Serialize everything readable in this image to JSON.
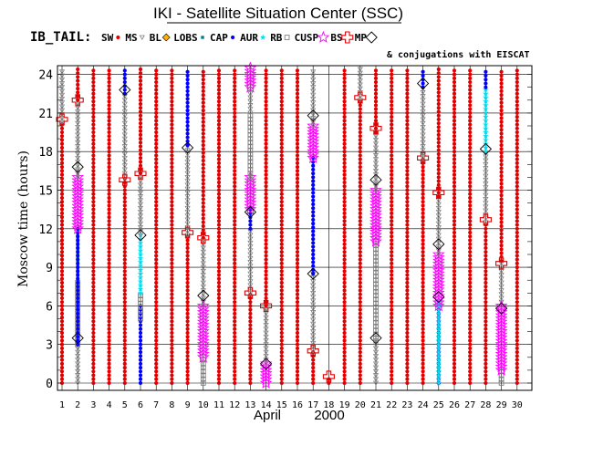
{
  "chart_data": {
    "type": "scatter",
    "title": "IKI - Satellite Situation Center (SSC)",
    "satellite": "IB_TAIL:",
    "legend_note": "& conjugations with EISCAT",
    "ylabel": "Moscow time (hours)",
    "xlabel_month": "April",
    "xlabel_year": "2000",
    "xlim": [
      1,
      30
    ],
    "ylim": [
      0,
      24
    ],
    "yticks": [
      0,
      3,
      6,
      9,
      12,
      15,
      18,
      21,
      24
    ],
    "xticks": [
      1,
      2,
      3,
      4,
      5,
      6,
      7,
      8,
      9,
      10,
      11,
      12,
      13,
      14,
      15,
      16,
      17,
      18,
      19,
      20,
      21,
      22,
      23,
      24,
      25,
      26,
      27,
      28,
      29,
      30
    ],
    "legend": [
      {
        "code": "SW",
        "label": "SW",
        "color": "#e00000",
        "shape": "dot"
      },
      {
        "code": "MS",
        "label": "MS",
        "color": "#7f7f7f",
        "shape": "tri-down"
      },
      {
        "code": "BL",
        "label": "BL",
        "color": "#ffb000",
        "shape": "diamond-fill"
      },
      {
        "code": "LOBS",
        "label": "LOBS",
        "color": "#008080",
        "shape": "square-small"
      },
      {
        "code": "CAP",
        "label": "CAP",
        "color": "#0000ff",
        "shape": "dot"
      },
      {
        "code": "AUR",
        "label": "AUR",
        "color": "#00ddee",
        "shape": "star"
      },
      {
        "code": "RB",
        "label": "RB",
        "color": "#7f7f7f",
        "shape": "square-open"
      },
      {
        "code": "CUSP",
        "label": "CUSP",
        "color": "#ff00ff",
        "shape": "star-open"
      },
      {
        "code": "BS",
        "label": "BS",
        "color": "#e00000",
        "shape": "cross-open"
      },
      {
        "code": "MP",
        "label": "MP",
        "color": "#000000",
        "shape": "diamond-open"
      }
    ],
    "days": [
      {
        "day": 1,
        "segments": [
          [
            "SW",
            0,
            20.3
          ],
          [
            "MS",
            20.3,
            24.5
          ]
        ],
        "bs": [
          20.5
        ],
        "mp": []
      },
      {
        "day": 2,
        "segments": [
          [
            "MS",
            0,
            3
          ],
          [
            "RB",
            3,
            8
          ],
          [
            "LOBS",
            8,
            12
          ],
          [
            "CAP",
            3,
            12
          ],
          [
            "CUSP",
            12,
            16
          ],
          [
            "MS",
            16,
            22
          ],
          [
            "SW",
            22,
            24.5
          ]
        ],
        "bs": [
          22
        ],
        "mp": [
          3.5,
          16.8
        ]
      },
      {
        "day": 3,
        "segments": [
          [
            "SW",
            0,
            24.5
          ]
        ],
        "bs": [],
        "mp": []
      },
      {
        "day": 4,
        "segments": [
          [
            "SW",
            0,
            24.5
          ]
        ],
        "bs": [],
        "mp": []
      },
      {
        "day": 5,
        "segments": [
          [
            "SW",
            0,
            16
          ],
          [
            "MS",
            16,
            22.5
          ],
          [
            "CAP",
            22.5,
            24.5
          ]
        ],
        "bs": [
          15.8
        ],
        "mp": [
          22.8
        ]
      },
      {
        "day": 6,
        "segments": [
          [
            "CAP",
            0,
            6
          ],
          [
            "RB",
            5,
            7
          ],
          [
            "AUR",
            7,
            11.5
          ],
          [
            "MS",
            11.5,
            16.3
          ],
          [
            "SW",
            16.3,
            24.5
          ]
        ],
        "bs": [
          16.3
        ],
        "mp": [
          11.5
        ]
      },
      {
        "day": 7,
        "segments": [
          [
            "SW",
            0,
            24.5
          ]
        ],
        "bs": [],
        "mp": []
      },
      {
        "day": 8,
        "segments": [
          [
            "SW",
            0,
            24.5
          ]
        ],
        "bs": [],
        "mp": []
      },
      {
        "day": 9,
        "segments": [
          [
            "SW",
            0,
            11.5
          ],
          [
            "MS",
            11.5,
            18.5
          ],
          [
            "CAP",
            18.5,
            24.5
          ]
        ],
        "bs": [
          11.7
        ],
        "mp": [
          18.3
        ]
      },
      {
        "day": 10,
        "segments": [
          [
            "RB",
            0,
            2
          ],
          [
            "CUSP",
            2,
            6
          ],
          [
            "MS",
            6,
            11.3
          ],
          [
            "SW",
            11.3,
            24.5
          ]
        ],
        "bs": [
          11.3
        ],
        "mp": [
          6.8
        ]
      },
      {
        "day": 11,
        "segments": [
          [
            "SW",
            0,
            24.5
          ]
        ],
        "bs": [],
        "mp": []
      },
      {
        "day": 12,
        "segments": [
          [
            "SW",
            0,
            24.5
          ]
        ],
        "bs": [],
        "mp": []
      },
      {
        "day": 13,
        "segments": [
          [
            "SW",
            0,
            7
          ],
          [
            "MS",
            7,
            12
          ],
          [
            "CAP",
            12,
            13.5
          ],
          [
            "CUSP",
            13.5,
            16
          ],
          [
            "RB",
            16,
            21
          ],
          [
            "MS",
            21,
            23
          ],
          [
            "CUSP",
            23,
            24.5
          ]
        ],
        "bs": [
          7
        ],
        "mp": [
          13.3
        ]
      },
      {
        "day": 14,
        "segments": [
          [
            "CUSP",
            0,
            1.5
          ],
          [
            "MS",
            1.5,
            6
          ],
          [
            "SW",
            6,
            24.5
          ]
        ],
        "bs": [
          6
        ],
        "mp": [
          1.5
        ]
      },
      {
        "day": 15,
        "segments": [
          [
            "SW",
            0,
            24.5
          ]
        ],
        "bs": [],
        "mp": []
      },
      {
        "day": 16,
        "segments": [
          [
            "SW",
            0,
            24.5
          ]
        ],
        "bs": [],
        "mp": []
      },
      {
        "day": 17,
        "segments": [
          [
            "SW",
            0,
            2.5
          ],
          [
            "MS",
            2.5,
            8.5
          ],
          [
            "CAP",
            8.5,
            17.5
          ],
          [
            "CUSP",
            17.5,
            20
          ],
          [
            "MS",
            20,
            24.5
          ]
        ],
        "bs": [
          2.5
        ],
        "mp": [
          8.5,
          20.8
        ]
      },
      {
        "day": 18,
        "segments": [
          [
            "SW",
            0,
            0.5
          ]
        ],
        "bs": [
          0.5
        ],
        "mp": []
      },
      {
        "day": 19,
        "segments": [
          [
            "SW",
            0,
            24.5
          ]
        ],
        "bs": [],
        "mp": []
      },
      {
        "day": 20,
        "segments": [
          [
            "SW",
            0,
            22
          ],
          [
            "MS",
            22,
            24.5
          ]
        ],
        "bs": [
          22.2
        ],
        "mp": []
      },
      {
        "day": 21,
        "segments": [
          [
            "MS",
            0,
            3.5
          ],
          [
            "RB",
            3.5,
            11
          ],
          [
            "CUSP",
            11,
            15
          ],
          [
            "MS",
            15,
            19.5
          ],
          [
            "SW",
            19.5,
            24.5
          ]
        ],
        "bs": [
          19.8
        ],
        "mp": [
          3.5,
          15.8
        ]
      },
      {
        "day": 22,
        "segments": [
          [
            "SW",
            0,
            24.5
          ]
        ],
        "bs": [],
        "mp": []
      },
      {
        "day": 23,
        "segments": [
          [
            "SW",
            0,
            24.5
          ]
        ],
        "bs": [],
        "mp": []
      },
      {
        "day": 24,
        "segments": [
          [
            "SW",
            0,
            17.5
          ],
          [
            "MS",
            17.5,
            23
          ],
          [
            "CAP",
            23,
            24.5
          ]
        ],
        "bs": [
          17.5
        ],
        "mp": [
          23.3
        ]
      },
      {
        "day": 25,
        "segments": [
          [
            "CAP",
            0,
            6
          ],
          [
            "AUR",
            0,
            6.5
          ],
          [
            "CUSP",
            6,
            10
          ],
          [
            "MS",
            10,
            14.5
          ],
          [
            "SW",
            14.5,
            24.5
          ]
        ],
        "bs": [
          14.8
        ],
        "mp": [
          6.7,
          10.8
        ]
      },
      {
        "day": 26,
        "segments": [
          [
            "SW",
            0,
            24.5
          ]
        ],
        "bs": [],
        "mp": []
      },
      {
        "day": 27,
        "segments": [
          [
            "SW",
            0,
            24.5
          ]
        ],
        "bs": [],
        "mp": []
      },
      {
        "day": 28,
        "segments": [
          [
            "SW",
            0,
            12.5
          ],
          [
            "MS",
            12.5,
            18
          ],
          [
            "AUR",
            18,
            23
          ],
          [
            "CAP",
            23,
            24.5
          ]
        ],
        "bs": [
          12.7
        ],
        "mp": [
          18.2
        ]
      },
      {
        "day": 29,
        "segments": [
          [
            "RB",
            0,
            1
          ],
          [
            "CUSP",
            1,
            6
          ],
          [
            "MS",
            6,
            9.5
          ],
          [
            "SW",
            9.5,
            24.5
          ]
        ],
        "bs": [
          9.3
        ],
        "mp": [
          5.8
        ]
      },
      {
        "day": 30,
        "segments": [
          [
            "SW",
            0,
            24.5
          ]
        ],
        "bs": [],
        "mp": []
      }
    ]
  }
}
